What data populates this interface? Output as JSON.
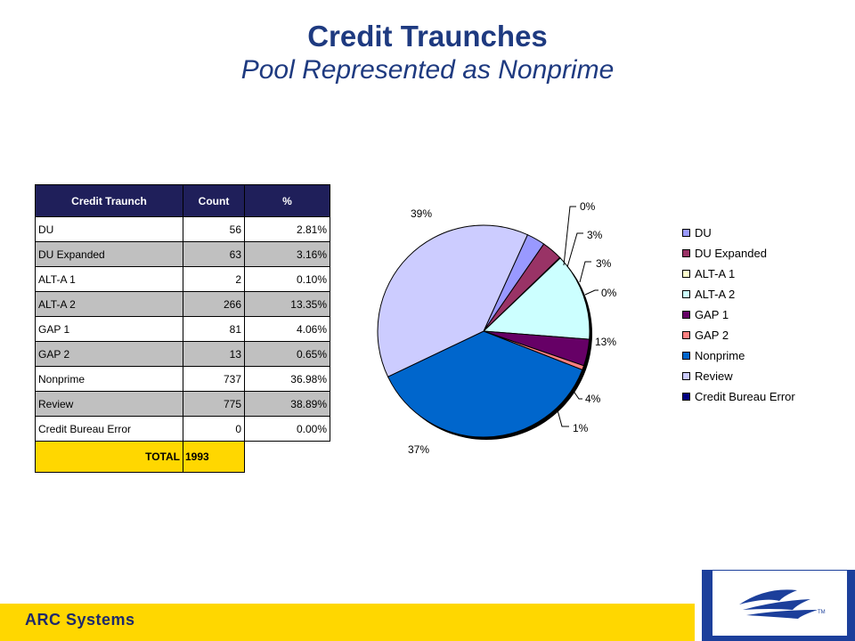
{
  "header": {
    "title": "Credit Traunches",
    "subtitle": "Pool Represented as Nonprime"
  },
  "table": {
    "columns": [
      "Credit Traunch",
      "Count",
      "%"
    ],
    "rows": [
      [
        "DU",
        "56",
        "2.81%"
      ],
      [
        "DU Expanded",
        "63",
        "3.16%"
      ],
      [
        "ALT-A 1",
        "2",
        "0.10%"
      ],
      [
        "ALT-A 2",
        "266",
        "13.35%"
      ],
      [
        "GAP 1",
        "81",
        "4.06%"
      ],
      [
        "GAP 2",
        "13",
        "0.65%"
      ],
      [
        "Nonprime",
        "737",
        "36.98%"
      ],
      [
        "Review",
        "775",
        "38.89%"
      ],
      [
        "Credit Bureau Error",
        "0",
        "0.00%"
      ]
    ],
    "total_label": "TOTAL",
    "total_value": "1993"
  },
  "chart_data": {
    "type": "pie",
    "categories": [
      "DU",
      "DU Expanded",
      "ALT-A 1",
      "ALT-A 2",
      "GAP 1",
      "GAP 2",
      "Nonprime",
      "Review",
      "Credit Bureau Error"
    ],
    "values": [
      56,
      63,
      2,
      266,
      81,
      13,
      737,
      775,
      0
    ],
    "data_labels": [
      "3%",
      "3%",
      "0%",
      "13%",
      "4%",
      "1%",
      "37%",
      "39%",
      "0%"
    ],
    "colors": [
      "#9999ff",
      "#993366",
      "#ffffcc",
      "#ccffff",
      "#660066",
      "#ff8080",
      "#0066cc",
      "#ccccff",
      "#000080"
    ],
    "legend": [
      "DU",
      "DU Expanded",
      "ALT-A 1",
      "ALT-A 2",
      "GAP 1",
      "GAP 2",
      "Nonprime",
      "Review",
      "Credit Bureau Error"
    ],
    "legend_position": "right"
  },
  "footer": {
    "brand": "ARC Systems",
    "colors": {
      "bar": "#ffd700",
      "brand_text": "#1f2a6b",
      "logo_frame": "#1c3f9b"
    },
    "logo_mark": "TM"
  }
}
